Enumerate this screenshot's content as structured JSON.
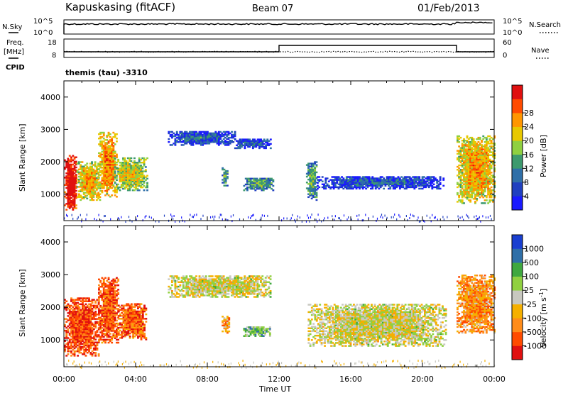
{
  "header": {
    "station": "Kapuskasing (fitACF)",
    "beam": "Beam 07",
    "date": "01/Feb/2013"
  },
  "top_strip": {
    "left_label": "N.Sky",
    "left_ticks": [
      "10^5",
      "10^0"
    ],
    "right_ticks": [
      "10^5",
      "10^0"
    ],
    "right_label": "N.Search",
    "series": [
      {
        "name": "N.Sky",
        "style": "solid"
      },
      {
        "name": "N.Search",
        "style": "dotted"
      }
    ]
  },
  "freq_strip": {
    "left_label_1": "Freq.",
    "left_label_2": "[MHz]",
    "left_ticks": [
      "18",
      "8"
    ],
    "right_ticks": [
      "60",
      "0"
    ],
    "right_label": "Nave",
    "cpid_label": "CPID",
    "series": [
      {
        "name": "Freq.",
        "style": "solid"
      },
      {
        "name": "Nave",
        "style": "dotted"
      }
    ]
  },
  "cpid_text": "themis (tau) -3310",
  "colors": {
    "power": [
      "#1a1aff",
      "#2040c0",
      "#2f6fa8",
      "#3d9a6e",
      "#8fd040",
      "#e8c800",
      "#ff9600",
      "#ff4b00",
      "#e01010"
    ],
    "velocity": [
      "#e01010",
      "#ff4b00",
      "#ff8c1a",
      "#f5b000",
      "#c8c8c0",
      "#90d040",
      "#3fa83f",
      "#2f6fa8",
      "#1a3fd0"
    ],
    "ground": "#c6c6c0"
  },
  "chart_data": [
    {
      "type": "heatmap",
      "name": "power",
      "ylabel": "Slant Range [km]",
      "xlim": [
        0,
        24
      ],
      "ylim": [
        180,
        4500
      ],
      "yticks": [
        "1000",
        "2000",
        "3000",
        "4000"
      ],
      "colorbar": {
        "label": "Power [dB]",
        "range": [
          0,
          32
        ],
        "ticks": [
          "4",
          "8",
          "12",
          "16",
          "20",
          "24",
          "28"
        ]
      },
      "echo_regions": [
        {
          "t": [
            0.0,
            0.7
          ],
          "r": [
            500,
            2200
          ],
          "level": 0.9
        },
        {
          "t": [
            0.7,
            2.0
          ],
          "r": [
            800,
            2000
          ],
          "level": 0.55
        },
        {
          "t": [
            1.9,
            2.9
          ],
          "r": [
            900,
            2900
          ],
          "level": 0.6
        },
        {
          "t": [
            2.8,
            4.6
          ],
          "r": [
            1100,
            2100
          ],
          "level": 0.45
        },
        {
          "t": [
            5.8,
            9.5
          ],
          "r": [
            2500,
            2950
          ],
          "level": 0.1
        },
        {
          "t": [
            9.5,
            11.5
          ],
          "r": [
            2400,
            2700
          ],
          "level": 0.1
        },
        {
          "t": [
            8.8,
            9.1
          ],
          "r": [
            1200,
            1800
          ],
          "level": 0.3
        },
        {
          "t": [
            10.0,
            11.7
          ],
          "r": [
            1100,
            1500
          ],
          "level": 0.25
        },
        {
          "t": [
            13.5,
            14.1
          ],
          "r": [
            800,
            2000
          ],
          "level": 0.3
        },
        {
          "t": [
            14.1,
            21.2
          ],
          "r": [
            1150,
            1550
          ],
          "level": 0.08
        },
        {
          "t": [
            21.9,
            24.0
          ],
          "r": [
            700,
            2800
          ],
          "level": 0.55
        }
      ],
      "ground_scatter": {
        "t": [
          0.0,
          24.0
        ],
        "r": [
          180,
          400
        ]
      }
    },
    {
      "type": "heatmap",
      "name": "velocity",
      "ylabel": "Slant Range [km]",
      "xlabel": "Time UT",
      "xlim": [
        0,
        24
      ],
      "ylim": [
        180,
        4500
      ],
      "xticks": [
        "00:00",
        "04:00",
        "08:00",
        "12:00",
        "16:00",
        "20:00",
        "00:00"
      ],
      "yticks": [
        "1000",
        "2000",
        "3000",
        "4000"
      ],
      "colorbar": {
        "label": "Velocity [m s^-1]",
        "label_text": "Velocity",
        "label_units": "[m s",
        "label_exp": "-1",
        "label_close": "]",
        "ticks": [
          "1000",
          "500",
          "100",
          "25",
          "-25",
          "-100",
          "-500",
          "-1000"
        ]
      },
      "echo_regions": [
        {
          "t": [
            0.0,
            1.9
          ],
          "r": [
            500,
            2300
          ],
          "level": 0.15
        },
        {
          "t": [
            1.9,
            3.0
          ],
          "r": [
            900,
            2900
          ],
          "level": 0.18
        },
        {
          "t": [
            3.0,
            4.6
          ],
          "r": [
            1000,
            2100
          ],
          "level": 0.2
        },
        {
          "t": [
            5.8,
            11.5
          ],
          "r": [
            2300,
            2950
          ],
          "level": 0.5
        },
        {
          "t": [
            8.8,
            9.2
          ],
          "r": [
            1200,
            1700
          ],
          "level": 0.3
        },
        {
          "t": [
            10.0,
            11.5
          ],
          "r": [
            1100,
            1400
          ],
          "level": 0.65
        },
        {
          "t": [
            13.6,
            21.3
          ],
          "r": [
            800,
            2100
          ],
          "level": 0.5
        },
        {
          "t": [
            21.9,
            24.0
          ],
          "r": [
            1200,
            3000
          ],
          "level": 0.3
        }
      ],
      "ground_scatter": {
        "t": [
          0.0,
          24.0
        ],
        "r": [
          180,
          400
        ]
      }
    }
  ]
}
